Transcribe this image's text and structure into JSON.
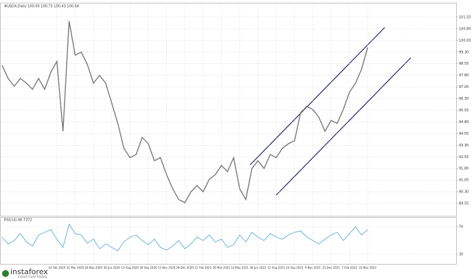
{
  "chart_data": [
    {
      "type": "line",
      "title": "#USDX,Daily 100.00 100.73 100.43 100.68",
      "categories": [
        null,
        null,
        null,
        null,
        null,
        null,
        null,
        null,
        null,
        "14 Feb 2020",
        null,
        null,
        "31 Mar 2020",
        null,
        null,
        "18 May 2020",
        null,
        null,
        "30 Jun 2020",
        null,
        null,
        "13 Aug 2020",
        null,
        null,
        "28 Sep 2020",
        null,
        null,
        "11 Nov 2020",
        null,
        null,
        "28 Dec 2020",
        null,
        null,
        "11 Feb 2021",
        null,
        null,
        "29 Mar 2021",
        null,
        null,
        "13 May 2021",
        null,
        null,
        "28 Jun 2021",
        null,
        null,
        "12 Aug 2021",
        null,
        null,
        "24 Sep 2021",
        null,
        null,
        "9 Nov 2021",
        null,
        null,
        "23 Dec 2021",
        null,
        null,
        "7 Feb 2022",
        null,
        null,
        "23 Mar 2022"
      ],
      "series": [
        {
          "name": "USDX",
          "color": "#777777",
          "values": [
            98.45,
            97.6,
            97.1,
            97.6,
            97.3,
            96.9,
            97.6,
            96.9,
            98.0,
            98.7,
            94.2,
            101.3,
            99.1,
            99.3,
            98.5,
            97.3,
            97.8,
            97.3,
            96.0,
            94.7,
            93.1,
            92.5,
            92.7,
            93.8,
            93.4,
            92.3,
            92.5,
            91.4,
            90.5,
            89.8,
            89.6,
            90.3,
            90.7,
            90.3,
            91.1,
            91.4,
            92.0,
            91.6,
            92.5,
            90.5,
            89.8,
            91.8,
            92.3,
            91.8,
            92.7,
            92.5,
            93.1,
            93.4,
            93.6,
            95.4,
            95.8,
            95.6,
            95.1,
            94.2,
            94.9,
            94.7,
            95.6,
            96.7,
            97.3,
            98.2,
            99.6
          ]
        }
      ],
      "ylim": [
        88.8,
        102.3
      ],
      "yticks": [
        89.55,
        {
          "value": 90.3,
          "label": "90.30"
        },
        91.05,
        {
          "value": 91.8,
          "label": "91.80"
        },
        92.55,
        {
          "value": 93.3,
          "label": "93.30"
        },
        94.05,
        {
          "value": 94.8,
          "label": "94.80"
        },
        95.55,
        {
          "value": 96.3,
          "label": "96.30"
        },
        97.05,
        {
          "value": 97.8,
          "label": "97.80"
        },
        98.55,
        {
          "value": 99.3,
          "label": "99.30"
        },
        100.05,
        {
          "value": 100.8,
          "label": "100.80"
        },
        101.55
      ],
      "grid": true
    },
    {
      "type": "line",
      "title": "RSI(14) 66.7372",
      "series": [
        {
          "name": "RSI(14)",
          "color": "#5aa9d6",
          "values": [
            55,
            45,
            50,
            60,
            48,
            42,
            58,
            62,
            66,
            52,
            40,
            74,
            60,
            58,
            46,
            52,
            38,
            45,
            40,
            35,
            48,
            55,
            58,
            50,
            44,
            52,
            40,
            36,
            42,
            50,
            38,
            45,
            55,
            50,
            58,
            48,
            52,
            40,
            44,
            58,
            48,
            62,
            55,
            50,
            60,
            55,
            52,
            58,
            62,
            64,
            55,
            50,
            45,
            52,
            58,
            62,
            50,
            60,
            70,
            58,
            66
          ]
        }
      ],
      "ylim": [
        18,
        84
      ],
      "yticks": [
        30,
        70
      ],
      "grid": true
    }
  ],
  "logo": {
    "name": "instaforex",
    "tagline": "Instant Forex Trading"
  }
}
